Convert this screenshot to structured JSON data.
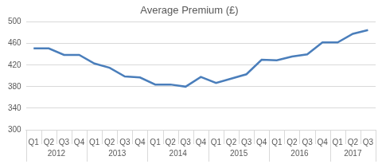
{
  "chart_data": {
    "type": "line",
    "title": "Average Premium (£)",
    "categories": [
      "Q1",
      "Q2",
      "Q3",
      "Q4",
      "Q1",
      "Q2",
      "Q3",
      "Q4",
      "Q1",
      "Q2",
      "Q3",
      "Q4",
      "Q1",
      "Q2",
      "Q3",
      "Q4",
      "Q1",
      "Q2",
      "Q3",
      "Q4",
      "Q1",
      "Q2",
      "Q3"
    ],
    "category_groups": [
      "2012",
      "2012",
      "2012",
      "2012",
      "2013",
      "2013",
      "2013",
      "2013",
      "2014",
      "2014",
      "2014",
      "2014",
      "2015",
      "2015",
      "2015",
      "2015",
      "2016",
      "2016",
      "2016",
      "2016",
      "2017",
      "2017",
      "2017"
    ],
    "values": [
      451,
      451,
      439,
      439,
      423,
      415,
      399,
      397,
      384,
      384,
      380,
      398,
      387,
      395,
      403,
      430,
      429,
      436,
      440,
      462,
      462,
      478,
      485
    ],
    "color": "#4a7ebb",
    "ylim": [
      300,
      500
    ],
    "yticks": [
      300,
      340,
      380,
      420,
      460,
      500
    ],
    "grid": true,
    "marker": "none"
  }
}
